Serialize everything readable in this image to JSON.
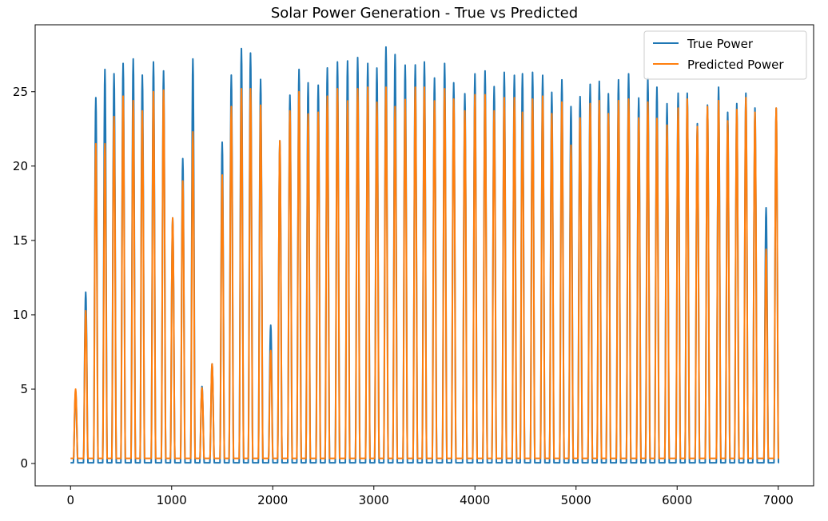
{
  "chart_data": {
    "type": "line",
    "title": "Solar Power Generation - True vs Predicted",
    "xlabel": "",
    "ylabel": "",
    "xlim": [
      -350,
      7350
    ],
    "ylim": [
      -1.5,
      29.5
    ],
    "x_ticks": [
      0,
      1000,
      2000,
      3000,
      4000,
      5000,
      6000,
      7000
    ],
    "x_tick_labels": [
      "0",
      "1000",
      "2000",
      "3000",
      "4000",
      "5000",
      "6000",
      "7000"
    ],
    "y_ticks": [
      0,
      5,
      10,
      15,
      20,
      25
    ],
    "y_tick_labels": [
      "0",
      "5",
      "10",
      "15",
      "20",
      "25"
    ],
    "grid": false,
    "legend_position": "top-right",
    "x_range": [
      0,
      7000
    ],
    "series": [
      {
        "name": "True Power",
        "color": "#1f77b4",
        "peaks": [
          [
            50,
            4.8
          ],
          [
            150,
            12
          ],
          [
            250,
            24.6
          ],
          [
            340,
            26.5
          ],
          [
            430,
            27.3
          ],
          [
            520,
            26.9
          ],
          [
            620,
            27.2
          ],
          [
            710,
            27.2
          ],
          [
            820,
            27
          ],
          [
            920,
            26.4
          ],
          [
            1010,
            17.2
          ],
          [
            1110,
            20.5
          ],
          [
            1210,
            27.2
          ],
          [
            1300,
            5.4
          ],
          [
            1400,
            6.7
          ],
          [
            1500,
            21.6
          ],
          [
            1590,
            27.2
          ],
          [
            1690,
            27.9
          ],
          [
            1780,
            27.6
          ],
          [
            1880,
            26.9
          ],
          [
            1980,
            9.3
          ],
          [
            2070,
            21.7
          ],
          [
            2170,
            25.8
          ],
          [
            2260,
            26.5
          ],
          [
            2350,
            25.6
          ],
          [
            2450,
            26.5
          ],
          [
            2540,
            26.6
          ],
          [
            2640,
            27
          ],
          [
            2740,
            28.2
          ],
          [
            2840,
            27.3
          ],
          [
            2940,
            26.9
          ],
          [
            3030,
            27.7
          ],
          [
            3120,
            28
          ],
          [
            3210,
            27.5
          ],
          [
            3310,
            27.9
          ],
          [
            3410,
            26.8
          ],
          [
            3500,
            27
          ],
          [
            3600,
            27
          ],
          [
            3700,
            26.9
          ],
          [
            3790,
            25.6
          ],
          [
            3900,
            25.9
          ],
          [
            4000,
            26.2
          ],
          [
            4100,
            26.4
          ],
          [
            4190,
            26.4
          ],
          [
            4290,
            26.3
          ],
          [
            4390,
            26.1
          ],
          [
            4470,
            27.3
          ],
          [
            4570,
            26.3
          ],
          [
            4670,
            26.1
          ],
          [
            4760,
            26
          ],
          [
            4860,
            25.8
          ],
          [
            4950,
            24
          ],
          [
            5040,
            25.7
          ],
          [
            5140,
            25.5
          ],
          [
            5230,
            25.7
          ],
          [
            5320,
            25.9
          ],
          [
            5420,
            25.8
          ],
          [
            5520,
            26.2
          ],
          [
            5620,
            25.6
          ],
          [
            5710,
            25.9
          ],
          [
            5800,
            25.3
          ],
          [
            5900,
            25.2
          ],
          [
            6010,
            24.9
          ],
          [
            6100,
            24.9
          ],
          [
            6200,
            23.8
          ],
          [
            6300,
            24.1
          ],
          [
            6410,
            25.3
          ],
          [
            6500,
            24.6
          ],
          [
            6590,
            24.2
          ],
          [
            6680,
            24.9
          ],
          [
            6770,
            24.9
          ],
          [
            6880,
            17.2
          ],
          [
            6980,
            23.9
          ]
        ]
      },
      {
        "name": "Predicted Power",
        "color": "#ff7f0e",
        "peaks": [
          [
            50,
            5
          ],
          [
            150,
            10.7
          ],
          [
            250,
            21.5
          ],
          [
            340,
            21.5
          ],
          [
            430,
            24.3
          ],
          [
            520,
            24.7
          ],
          [
            620,
            24.4
          ],
          [
            710,
            24.7
          ],
          [
            820,
            25
          ],
          [
            920,
            25.1
          ],
          [
            1010,
            17.2
          ],
          [
            1110,
            19
          ],
          [
            1210,
            22.3
          ],
          [
            1300,
            5.3
          ],
          [
            1400,
            6.7
          ],
          [
            1500,
            19.4
          ],
          [
            1590,
            25
          ],
          [
            1690,
            25.2
          ],
          [
            1780,
            25.2
          ],
          [
            1880,
            25.1
          ],
          [
            1980,
            7.6
          ],
          [
            2070,
            21.7
          ],
          [
            2170,
            24.7
          ],
          [
            2260,
            25
          ],
          [
            2350,
            23.5
          ],
          [
            2450,
            24.6
          ],
          [
            2540,
            24.7
          ],
          [
            2640,
            25.2
          ],
          [
            2740,
            25.4
          ],
          [
            2840,
            25.2
          ],
          [
            2940,
            25.3
          ],
          [
            3030,
            25.3
          ],
          [
            3120,
            25.3
          ],
          [
            3210,
            24
          ],
          [
            3310,
            25.5
          ],
          [
            3410,
            25.3
          ],
          [
            3500,
            25.3
          ],
          [
            3600,
            25.4
          ],
          [
            3700,
            25.2
          ],
          [
            3790,
            24.5
          ],
          [
            3900,
            24.7
          ],
          [
            4000,
            24.8
          ],
          [
            4100,
            24.8
          ],
          [
            4190,
            24.7
          ],
          [
            4290,
            24.6
          ],
          [
            4390,
            24.6
          ],
          [
            4470,
            24.6
          ],
          [
            4570,
            24.5
          ],
          [
            4670,
            24.7
          ],
          [
            4760,
            24.5
          ],
          [
            4860,
            24.3
          ],
          [
            4950,
            21.4
          ],
          [
            5040,
            24.2
          ],
          [
            5140,
            24.2
          ],
          [
            5230,
            24.4
          ],
          [
            5320,
            24.5
          ],
          [
            5420,
            24.4
          ],
          [
            5520,
            24.5
          ],
          [
            5620,
            24.2
          ],
          [
            5710,
            24.3
          ],
          [
            5800,
            23.2
          ],
          [
            5900,
            23.7
          ],
          [
            6010,
            23.9
          ],
          [
            6100,
            24.5
          ],
          [
            6200,
            23.6
          ],
          [
            6300,
            24
          ],
          [
            6410,
            24.4
          ],
          [
            6500,
            24
          ],
          [
            6590,
            23.8
          ],
          [
            6680,
            24.6
          ],
          [
            6770,
            24.6
          ],
          [
            6880,
            14.4
          ],
          [
            6980,
            23.9
          ]
        ]
      }
    ]
  }
}
